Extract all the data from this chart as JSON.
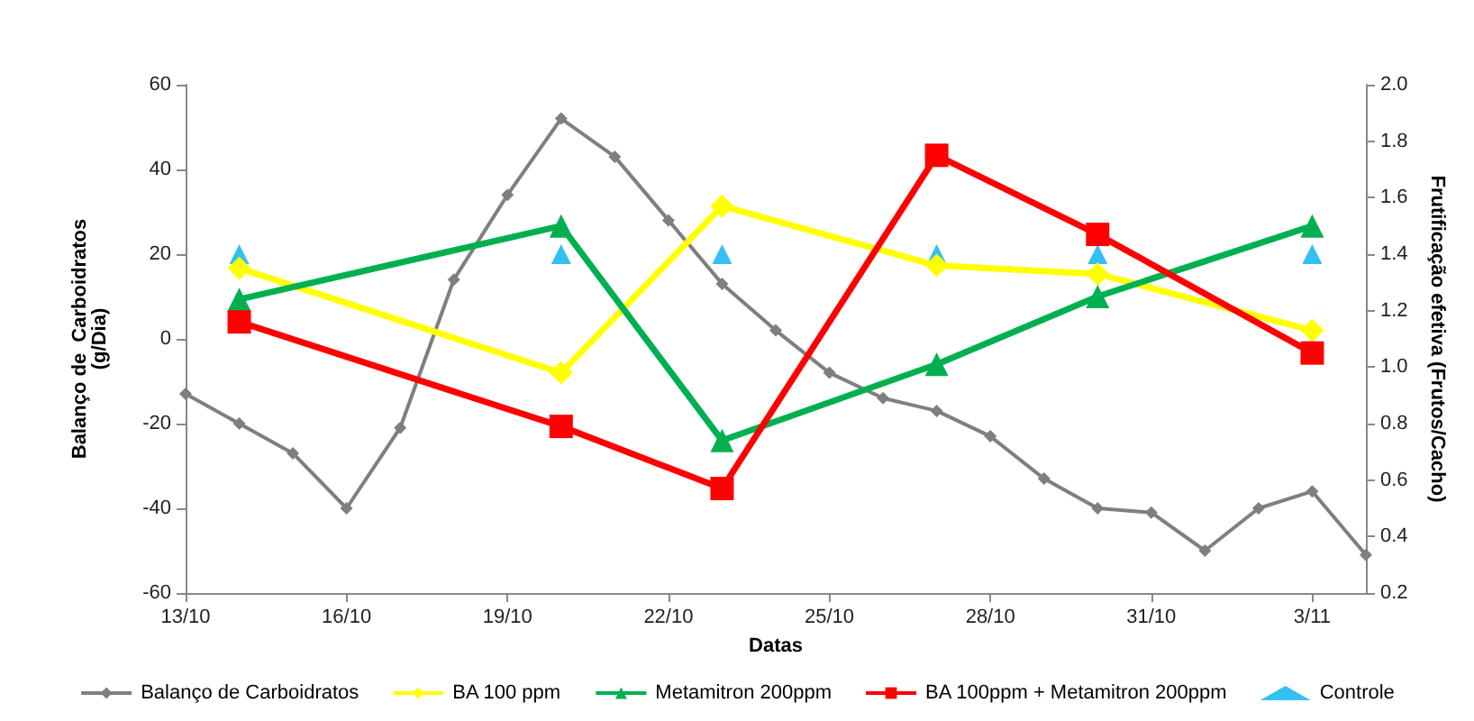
{
  "chart_data": {
    "type": "line",
    "xlabel": "Datas",
    "ylabel": "Balanço de  Carboidratos\n(g/Dia)",
    "y2label": "Frutificação efetiva (Frutos/Cacho)",
    "xlim": [
      "--10-13",
      "--11-04"
    ],
    "xticks": [
      {
        "value": "--10-13",
        "label": "13/10"
      },
      {
        "value": "--10-16",
        "label": "16/10"
      },
      {
        "value": "--10-19",
        "label": "19/10"
      },
      {
        "value": "--10-22",
        "label": "22/10"
      },
      {
        "value": "--10-25",
        "label": "25/10"
      },
      {
        "value": "--10-28",
        "label": "28/10"
      },
      {
        "value": "--10-31",
        "label": "31/10"
      },
      {
        "value": "--11-03",
        "label": "3/11"
      }
    ],
    "ylim": [
      -60,
      60
    ],
    "yticks": [
      -60,
      -40,
      -20,
      0,
      20,
      40,
      60
    ],
    "y2lim": [
      0.2,
      2.0
    ],
    "y2ticks": [
      {
        "value": 0.2,
        "label": "0.2"
      },
      0.4,
      0.6,
      0.8,
      {
        "value": 1.0,
        "label": "1.0"
      },
      1.2,
      1.4,
      1.6,
      1.8,
      {
        "value": 2.0,
        "label": "2.0"
      }
    ],
    "grid": false,
    "legend": "bottom",
    "series": [
      {
        "name": "Balanço de Carboidratos",
        "color": "#7f7f7f",
        "marker": "diamond",
        "x": [
          "--10-13",
          "--10-14",
          "--10-15",
          "--10-16",
          "--10-17",
          "--10-18",
          "--10-19",
          "--10-20",
          "--10-21",
          "--10-22",
          "--10-23",
          "--10-24",
          "--10-25",
          "--10-26",
          "--10-27",
          "--10-28",
          "--10-29",
          "--10-30",
          "--10-31",
          "--11-01",
          "--11-02",
          "--11-03",
          "--11-04"
        ],
        "values": [
          -13,
          -20,
          -27,
          -40,
          -21,
          14,
          34,
          52,
          43,
          28,
          13,
          2,
          -8,
          -14,
          -17,
          -23,
          -33,
          -40,
          -41,
          -50,
          -40,
          -36,
          -51
        ]
      },
      {
        "name": "BA 100 ppm",
        "color": "#ffff00",
        "marker": "diamond",
        "axis": "y2",
        "x": [
          "--10-14",
          "--10-20",
          "--10-23",
          "--10-27",
          "--10-30",
          "--11-03"
        ],
        "values": [
          1.35,
          0.98,
          1.57,
          1.36,
          1.33,
          1.13
        ]
      },
      {
        "name": "Metamitron 200ppm",
        "color": "#00b050",
        "marker": "triangle",
        "axis": "y2",
        "x": [
          "--10-14",
          "--10-20",
          "--10-23",
          "--10-27",
          "--10-30",
          "--11-03"
        ],
        "values": [
          1.24,
          1.5,
          0.74,
          1.01,
          1.25,
          1.5
        ]
      },
      {
        "name": "BA 100ppm + Metamitron 200ppm",
        "color": "#ff0000",
        "marker": "square",
        "axis": "y2",
        "x": [
          "--10-14",
          "--10-20",
          "--10-23",
          "--10-27",
          "--10-30",
          "--11-03"
        ],
        "values": [
          1.16,
          0.79,
          0.57,
          1.75,
          1.47,
          1.05
        ]
      },
      {
        "name": "Controle",
        "type": "scatter",
        "color": "#00b0f0",
        "marker": "triangle",
        "axis": "y2",
        "x": [
          "--10-14",
          "--10-20",
          "--10-23",
          "--10-27",
          "--10-30",
          "--11-03"
        ],
        "values": [
          1.4,
          1.4,
          1.4,
          1.4,
          1.4,
          1.4
        ]
      }
    ]
  }
}
